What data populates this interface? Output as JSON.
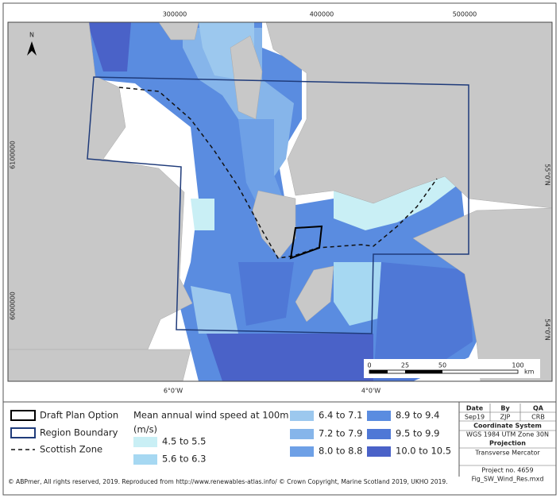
{
  "map": {
    "top_ticks": [
      "300000",
      "400000",
      "500000"
    ],
    "left_ticks": [
      "6100000",
      "6000000"
    ],
    "bottom_ticks": [
      "6°0'W",
      "4°0'W"
    ],
    "right_ticks": [
      "55°0'N",
      "54°0'N"
    ],
    "north": "N",
    "scale_bar": {
      "labels": [
        "0",
        "25",
        "50",
        "100"
      ],
      "unit": "km"
    }
  },
  "legend": {
    "items": [
      "Draft Plan Option",
      "Region Boundary",
      "Scottish Zone"
    ],
    "title": "Mean annual wind speed at 100m",
    "unit": "(m/s)",
    "classes": [
      {
        "label": "4.5 to 5.5",
        "color": "#c9eff5"
      },
      {
        "label": "5.6 to 6.3",
        "color": "#a6d8f2"
      },
      {
        "label": "6.4 to 7.1",
        "color": "#9cc8ee"
      },
      {
        "label": "7.2 to 7.9",
        "color": "#86b5ea"
      },
      {
        "label": "8.0 to 8.8",
        "color": "#6ea0e6"
      },
      {
        "label": "8.9 to 9.4",
        "color": "#5a8ce0"
      },
      {
        "label": "9.5 to 9.9",
        "color": "#4f78d6"
      },
      {
        "label": "10.0 to 10.5",
        "color": "#4a62c8"
      }
    ]
  },
  "info": {
    "headers": [
      "Date",
      "By",
      "QA"
    ],
    "values": [
      "Sep19",
      "ZJP",
      "CRB"
    ],
    "rows": [
      "Coordinate System",
      "WGS 1984 UTM Zone 30N",
      "Projection",
      "Transverse Mercator",
      "Project no. 4659",
      "Fig_SW_Wind_Res.mxd"
    ]
  },
  "copyright": "© ABPmer, All rights reserved, 2019. Reproduced from http://www.renewables-atlas.info/ © Crown Copyright, Marine Scotland 2019, UKHO 2019."
}
